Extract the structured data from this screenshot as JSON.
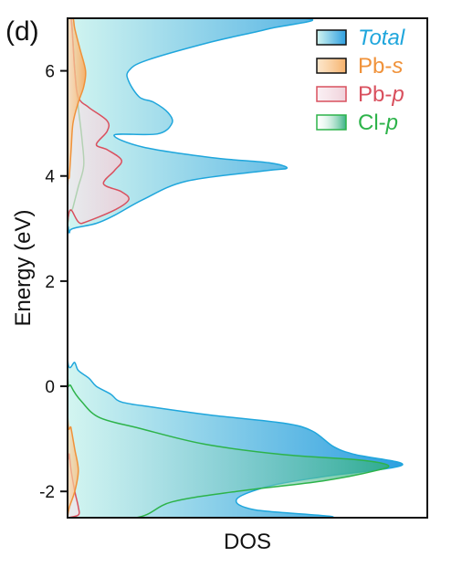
{
  "chart_data": {
    "type": "area",
    "panel_label": "(d)",
    "title": "",
    "xlabel": "DOS",
    "ylabel": "Energy (eV)",
    "ylim": [
      -2.5,
      7.0
    ],
    "xlim": [
      0,
      1.0
    ],
    "yticks": [
      "-2",
      "0",
      "2",
      "4",
      "6"
    ],
    "ytick_values": [
      -2,
      0,
      2,
      4,
      6
    ],
    "x_tick_labels": false,
    "grid": false,
    "legend_position": "top-right",
    "legend": [
      {
        "key": "total",
        "label": "Total",
        "italic_part": "Total",
        "prefix": ""
      },
      {
        "key": "pbs",
        "label": "Pb-s",
        "prefix": "Pb-",
        "italic_part": "s"
      },
      {
        "key": "pbp",
        "label": "Pb-p",
        "prefix": "Pb-",
        "italic_part": "p"
      },
      {
        "key": "clp",
        "label": "Cl-p",
        "prefix": "Cl-",
        "italic_part": "p"
      }
    ],
    "colors": {
      "total": "#1fa6dc",
      "total_fill_dark": "#2e9fe0",
      "total_fill_light": "#d2f5f0",
      "pbs": "#f0923a",
      "pbs_fill": "#f6b06a",
      "pbp": "#d9505e",
      "pbp_fill": "#eeccd6",
      "clp": "#2db34a",
      "clp_fill": "#2fae7e"
    },
    "series": [
      {
        "key": "total",
        "name": "Total",
        "points": [
          [
            0.0,
            -2.5
          ],
          [
            0.72,
            -2.5
          ],
          [
            0.52,
            -2.35
          ],
          [
            0.47,
            -2.15
          ],
          [
            0.56,
            -1.9
          ],
          [
            0.71,
            -1.72
          ],
          [
            0.93,
            -1.5
          ],
          [
            0.8,
            -1.3
          ],
          [
            0.74,
            -1.15
          ],
          [
            0.68,
            -0.85
          ],
          [
            0.6,
            -0.7
          ],
          [
            0.4,
            -0.55
          ],
          [
            0.24,
            -0.4
          ],
          [
            0.15,
            -0.3
          ],
          [
            0.12,
            -0.15
          ],
          [
            0.08,
            0.0
          ],
          [
            0.06,
            0.15
          ],
          [
            0.03,
            0.3
          ],
          [
            0.02,
            0.45
          ],
          [
            0.0,
            0.55
          ],
          [
            0.0,
            2.85
          ],
          [
            0.005,
            2.92
          ],
          [
            0.015,
            3.0
          ],
          [
            0.08,
            3.1
          ],
          [
            0.13,
            3.25
          ],
          [
            0.21,
            3.55
          ],
          [
            0.33,
            3.9
          ],
          [
            0.55,
            4.1
          ],
          [
            0.61,
            4.15
          ],
          [
            0.56,
            4.25
          ],
          [
            0.4,
            4.35
          ],
          [
            0.21,
            4.55
          ],
          [
            0.13,
            4.78
          ],
          [
            0.25,
            4.8
          ],
          [
            0.29,
            5.0
          ],
          [
            0.28,
            5.2
          ],
          [
            0.24,
            5.4
          ],
          [
            0.2,
            5.5
          ],
          [
            0.17,
            5.8
          ],
          [
            0.17,
            6.0
          ],
          [
            0.22,
            6.2
          ],
          [
            0.4,
            6.55
          ],
          [
            0.56,
            6.8
          ],
          [
            0.65,
            7.0
          ],
          [
            0.0,
            7.0
          ]
        ]
      },
      {
        "key": "clp",
        "name": "Cl-p",
        "points": [
          [
            0.0,
            -2.5
          ],
          [
            0.19,
            -2.5
          ],
          [
            0.29,
            -2.2
          ],
          [
            0.47,
            -2.0
          ],
          [
            0.71,
            -1.8
          ],
          [
            0.86,
            -1.6
          ],
          [
            0.89,
            -1.5
          ],
          [
            0.81,
            -1.4
          ],
          [
            0.6,
            -1.3
          ],
          [
            0.38,
            -1.1
          ],
          [
            0.2,
            -0.8
          ],
          [
            0.09,
            -0.6
          ],
          [
            0.04,
            -0.3
          ],
          [
            0.01,
            0.0
          ],
          [
            0.0,
            0.3
          ],
          [
            0.0,
            3.0
          ],
          [
            0.015,
            3.4
          ],
          [
            0.03,
            3.8
          ],
          [
            0.045,
            4.2
          ],
          [
            0.04,
            4.7
          ],
          [
            0.03,
            5.3
          ],
          [
            0.02,
            6.0
          ],
          [
            0.01,
            7.0
          ],
          [
            0.0,
            7.0
          ]
        ]
      },
      {
        "key": "pbp",
        "name": "Pb-p",
        "points": [
          [
            0.0,
            -2.5
          ],
          [
            0.03,
            -2.45
          ],
          [
            0.03,
            -2.3
          ],
          [
            0.02,
            -2.0
          ],
          [
            0.01,
            -1.6
          ],
          [
            0.005,
            -1.3
          ],
          [
            0.0,
            -1.0
          ],
          [
            0.0,
            3.05
          ],
          [
            0.04,
            3.1
          ],
          [
            0.13,
            3.35
          ],
          [
            0.17,
            3.55
          ],
          [
            0.15,
            3.7
          ],
          [
            0.1,
            3.85
          ],
          [
            0.13,
            4.1
          ],
          [
            0.15,
            4.3
          ],
          [
            0.11,
            4.5
          ],
          [
            0.08,
            4.6
          ],
          [
            0.11,
            4.85
          ],
          [
            0.11,
            5.05
          ],
          [
            0.06,
            5.3
          ],
          [
            0.03,
            5.5
          ],
          [
            0.02,
            6.0
          ],
          [
            0.01,
            7.0
          ],
          [
            0.0,
            7.0
          ]
        ]
      },
      {
        "key": "pbs",
        "name": "Pb-s",
        "points": [
          [
            0.0,
            -2.5
          ],
          [
            0.005,
            -2.3
          ],
          [
            0.02,
            -2.0
          ],
          [
            0.03,
            -1.6
          ],
          [
            0.02,
            -1.2
          ],
          [
            0.01,
            -0.8
          ],
          [
            0.0,
            -0.4
          ],
          [
            0.0,
            3.5
          ],
          [
            0.005,
            4.0
          ],
          [
            0.01,
            4.5
          ],
          [
            0.015,
            5.0
          ],
          [
            0.03,
            5.4
          ],
          [
            0.045,
            5.7
          ],
          [
            0.05,
            6.0
          ],
          [
            0.035,
            6.4
          ],
          [
            0.02,
            6.8
          ],
          [
            0.015,
            7.0
          ],
          [
            0.0,
            7.0
          ]
        ]
      }
    ]
  }
}
